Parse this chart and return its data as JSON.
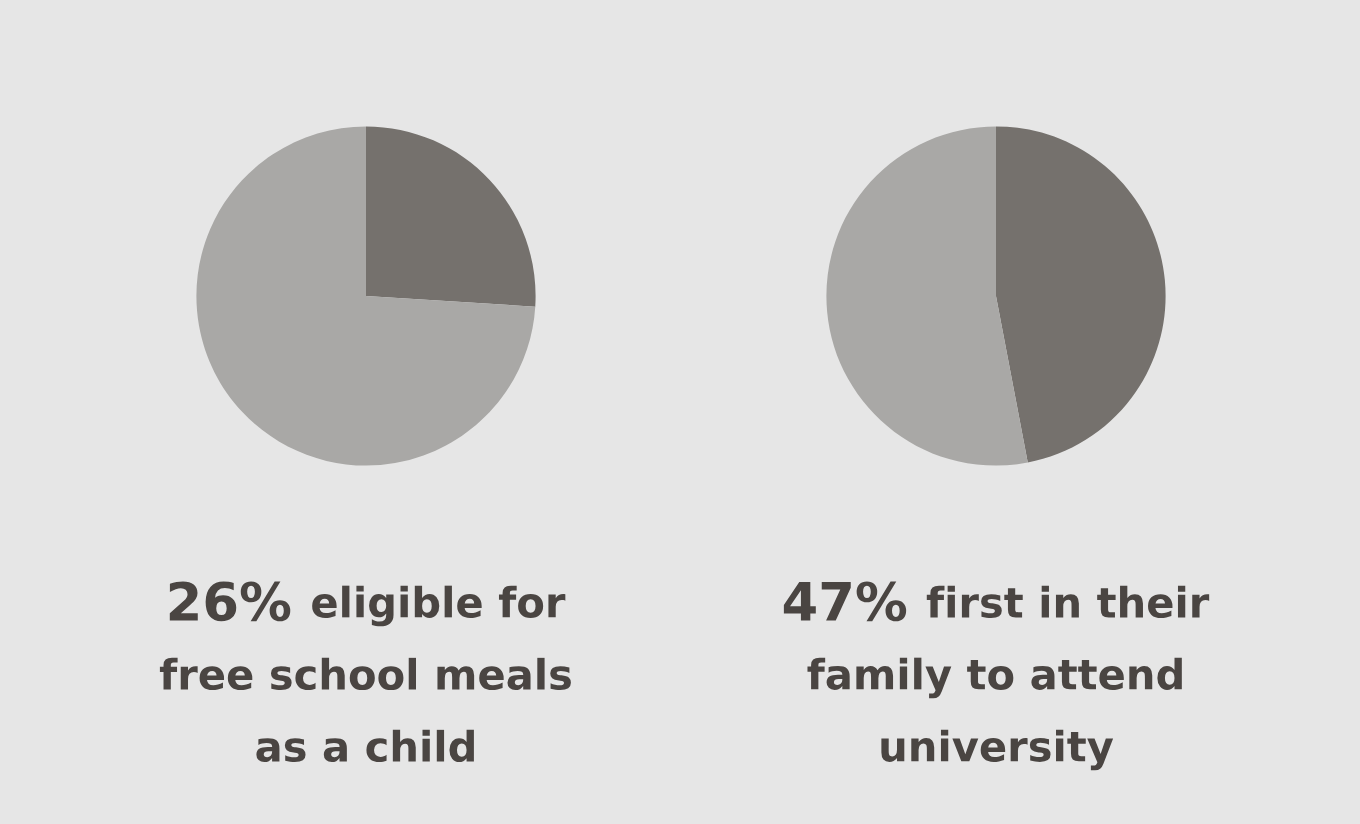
{
  "chart_data": [
    {
      "type": "pie",
      "categories": [
        null,
        null
      ],
      "values": [
        26,
        74
      ],
      "colors": [
        "#75716d",
        "#a9a8a6"
      ],
      "annotations": [
        "26%",
        "eligible for free school meals as a child"
      ]
    },
    {
      "type": "pie",
      "categories": [
        null,
        null
      ],
      "values": [
        47,
        53
      ],
      "colors": [
        "#75716d",
        "#a9a8a6"
      ],
      "annotations": [
        "47%",
        "first in their family to attend university"
      ]
    }
  ]
}
